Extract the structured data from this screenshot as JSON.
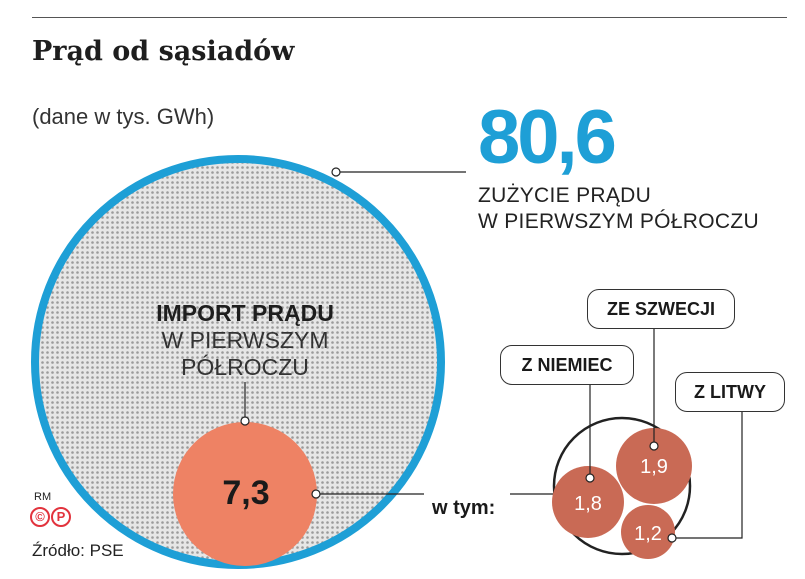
{
  "header": {
    "title": "Prąd od sąsiadów",
    "subtitle": "(dane w tys. GWh)"
  },
  "consumption": {
    "value": "80,6",
    "caption_line1": "ZUŻYCIE PRĄDU",
    "caption_line2": "W PIERWSZYM PÓŁROCZU"
  },
  "import": {
    "label_bold": "IMPORT PRĄDU",
    "label_line2": "W PIERWSZYM",
    "label_line3": "PÓŁROCZU",
    "value": "7,3"
  },
  "breakdown": {
    "intro": "w tym:",
    "sources": [
      {
        "label": "ZE SZWECJI",
        "value": "1,9"
      },
      {
        "label": "Z NIEMIEC",
        "value": "1,8"
      },
      {
        "label": "Z LITWY",
        "value": "1,2"
      }
    ]
  },
  "footer": {
    "credit": "RM",
    "copyright_symbol": "©",
    "p_symbol": "P",
    "source": "Źródło: PSE"
  },
  "colors": {
    "big_circle_border": "#1e9fd6",
    "import_circle": "#ee8264",
    "country_circles": "#c96a55",
    "value_text": "#1e9fd6"
  }
}
